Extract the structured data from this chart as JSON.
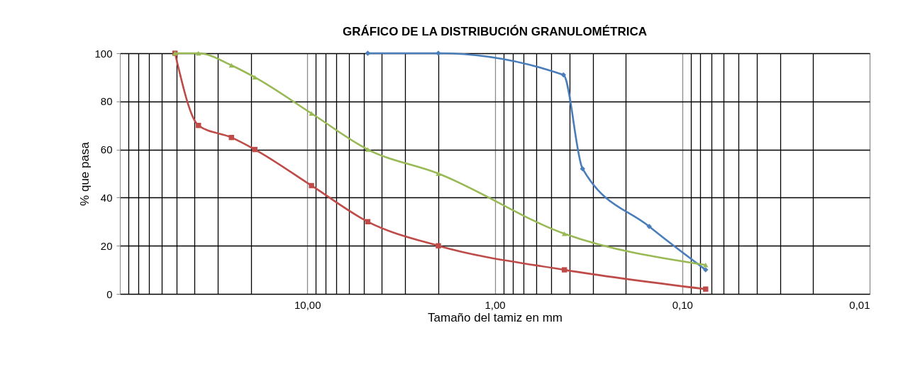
{
  "chart_data": {
    "type": "line",
    "title": "GRÁFICO DE LA DISTRIBUCIÓN GRANULOMÉTRICA",
    "xlabel": "Tamaño del tamiz en mm",
    "ylabel": "% que pasa",
    "log": "x",
    "grid": true,
    "xlim": [
      100,
      0.01
    ],
    "ylim": [
      0,
      100
    ],
    "yticks": [
      0,
      20,
      40,
      60,
      80,
      100
    ],
    "xticks": [
      {
        "value": 90,
        "label": null
      },
      {
        "value": 80,
        "label": null
      },
      {
        "value": 70,
        "label": null
      },
      {
        "value": 60,
        "label": null
      },
      {
        "value": 50,
        "label": null
      },
      {
        "value": 40,
        "label": null
      },
      {
        "value": 30,
        "label": null
      },
      {
        "value": 20,
        "label": null
      },
      {
        "value": 10,
        "label": "10,00"
      },
      {
        "value": 9,
        "label": null
      },
      {
        "value": 8,
        "label": null
      },
      {
        "value": 7,
        "label": null
      },
      {
        "value": 6,
        "label": null
      },
      {
        "value": 5,
        "label": null
      },
      {
        "value": 4,
        "label": null
      },
      {
        "value": 3,
        "label": null
      },
      {
        "value": 2,
        "label": null
      },
      {
        "value": 1,
        "label": "1,00"
      },
      {
        "value": 0.9,
        "label": null
      },
      {
        "value": 0.8,
        "label": null
      },
      {
        "value": 0.7,
        "label": null
      },
      {
        "value": 0.6,
        "label": null
      },
      {
        "value": 0.5,
        "label": null
      },
      {
        "value": 0.4,
        "label": null
      },
      {
        "value": 0.3,
        "label": null
      },
      {
        "value": 0.2,
        "label": null
      },
      {
        "value": 0.1,
        "label": "0,10"
      },
      {
        "value": 0.09,
        "label": null
      },
      {
        "value": 0.08,
        "label": null
      },
      {
        "value": 0.07,
        "label": null
      },
      {
        "value": 0.06,
        "label": null
      },
      {
        "value": 0.05,
        "label": null
      },
      {
        "value": 0.04,
        "label": null
      },
      {
        "value": 0.03,
        "label": null
      },
      {
        "value": 0.02,
        "label": null
      },
      {
        "value": 0.01,
        "label": "0,01"
      }
    ],
    "series": [
      {
        "color": "#4a7ebb",
        "marker": "diamond",
        "x": [
          4.76,
          2.0,
          0.43,
          0.34,
          0.15,
          0.075
        ],
        "values": [
          100,
          100,
          91,
          52,
          28,
          10
        ]
      },
      {
        "color": "#be4b48",
        "marker": "square",
        "x": [
          50.8,
          38.1,
          25.4,
          19.05,
          9.5,
          4.76,
          2.0,
          0.425,
          0.075
        ],
        "values": [
          100,
          70,
          65,
          60,
          45,
          30,
          20,
          10,
          2
        ]
      },
      {
        "color": "#98b954",
        "marker": "triangle",
        "x": [
          50.8,
          38.1,
          25.4,
          19.05,
          9.5,
          4.76,
          2.0,
          0.425,
          0.075
        ],
        "values": [
          100,
          100,
          95,
          90,
          75,
          60,
          50,
          25,
          12
        ]
      }
    ]
  }
}
